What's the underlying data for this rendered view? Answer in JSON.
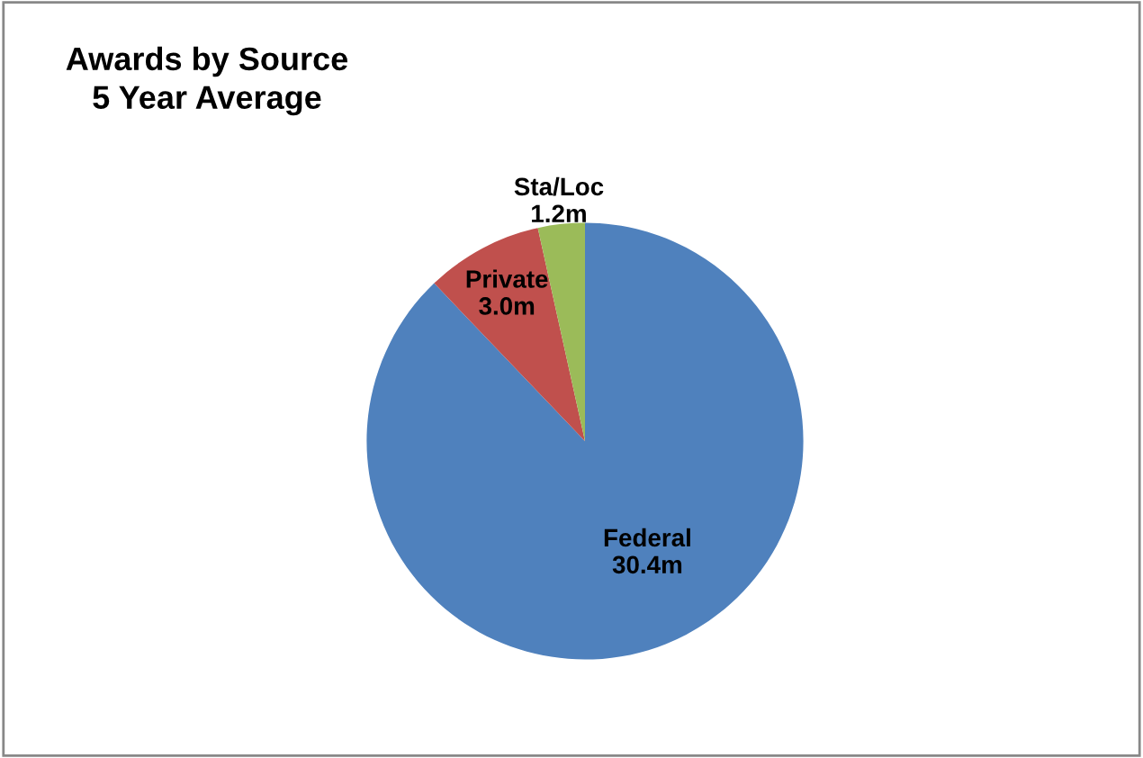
{
  "chart_data": {
    "type": "pie",
    "title": "Awards by Source\n5 Year Average",
    "categories": [
      "Federal",
      "Private",
      "Sta/Loc"
    ],
    "values": [
      30.4,
      3.0,
      1.2
    ],
    "value_labels": [
      "30.4m",
      "3.0m",
      "1.2m"
    ],
    "colors": [
      "#4f81bd",
      "#c0504d",
      "#9bbb59"
    ],
    "legend": false
  }
}
